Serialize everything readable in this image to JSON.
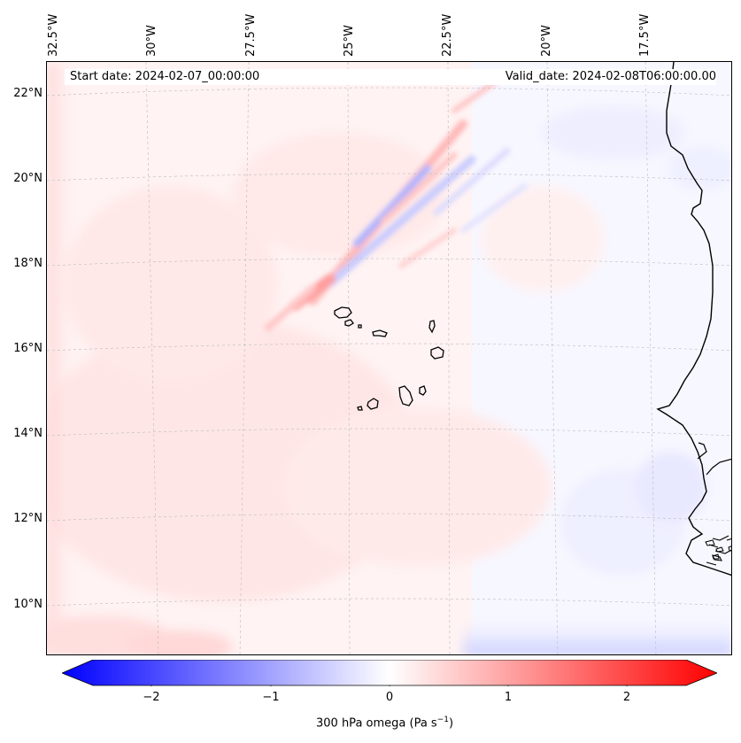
{
  "map": {
    "start_label": "Start date: 2024-02-07_00:00:00",
    "valid_label": "Valid_date: 2024-02-08T06:00:00.00",
    "longitude_labels": [
      "32.5°W",
      "30°W",
      "27.5°W",
      "25°W",
      "22.5°W",
      "20°W",
      "17.5°W"
    ],
    "latitude_labels": [
      "22°N",
      "20°N",
      "18°N",
      "16°N",
      "14°N",
      "12°N",
      "10°N"
    ],
    "field": "300 hPa omega",
    "region": "Cabo Verde / West African coast"
  },
  "colorbar": {
    "ticks": [
      "−2",
      "−1",
      "0",
      "1",
      "2"
    ],
    "label_main": "300 hPa omega (Pa s",
    "label_exp": "−1",
    "label_close": ")",
    "min_color": "#0000ff",
    "mid_color": "#ffffff",
    "max_color": "#ff0000"
  }
}
